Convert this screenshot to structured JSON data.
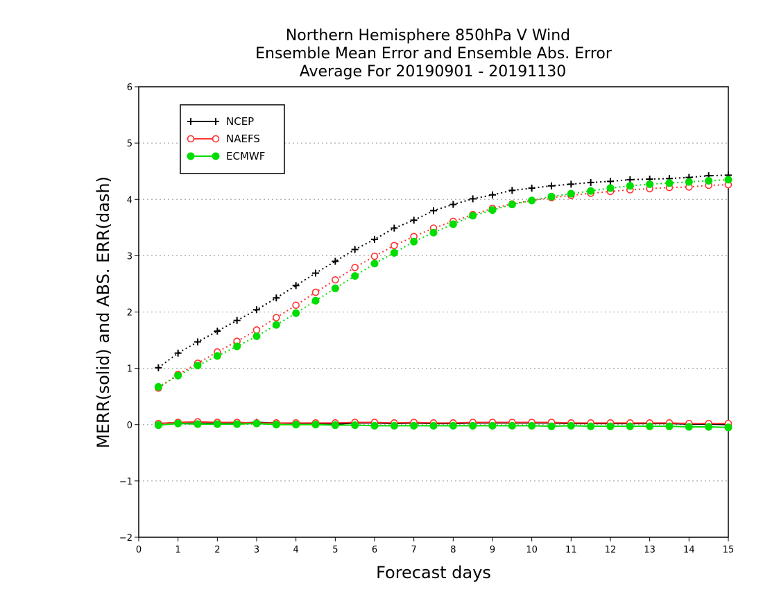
{
  "chart_data": {
    "type": "line",
    "title": [
      "Northern Hemisphere 850hPa V Wind",
      "Ensemble Mean Error and Ensemble Abs. Error",
      "Average For 20190901 - 20191130"
    ],
    "xlabel": "Forecast days",
    "ylabel": "MERR(solid) and ABS. ERR(dash)",
    "xlim": [
      0,
      15
    ],
    "ylim": [
      -2,
      6
    ],
    "xticks": [
      "0",
      "1",
      "2",
      "3",
      "4",
      "5",
      "6",
      "7",
      "8",
      "9",
      "10",
      "11",
      "12",
      "13",
      "14",
      "15"
    ],
    "yticks": [
      "−2",
      "−1",
      "0",
      "1",
      "2",
      "3",
      "4",
      "5",
      "6"
    ],
    "grid": "horizontal dotted",
    "legend_position": "top-left",
    "x": [
      0.5,
      1,
      1.5,
      2,
      2.5,
      3,
      3.5,
      4,
      4.5,
      5,
      5.5,
      6,
      6.5,
      7,
      7.5,
      8,
      8.5,
      9,
      9.5,
      10,
      10.5,
      11,
      11.5,
      12,
      12.5,
      13,
      13.5,
      14,
      14.5,
      15
    ],
    "series": [
      {
        "name": "NCEP",
        "color": "#000000",
        "marker": "plus",
        "abs_err": [
          1.01,
          1.27,
          1.47,
          1.66,
          1.85,
          2.04,
          2.25,
          2.47,
          2.69,
          2.9,
          3.11,
          3.29,
          3.49,
          3.63,
          3.8,
          3.91,
          4.01,
          4.08,
          4.16,
          4.2,
          4.24,
          4.27,
          4.3,
          4.32,
          4.35,
          4.36,
          4.37,
          4.39,
          4.42,
          4.43
        ],
        "mean_err": [
          0.02,
          0.04,
          0.04,
          0.03,
          0.03,
          0.04,
          0.03,
          0.02,
          0.02,
          0.01,
          0.03,
          0.03,
          0.02,
          0.03,
          0.02,
          0.02,
          0.03,
          0.03,
          0.03,
          0.03,
          0.03,
          0.02,
          0.02,
          0.02,
          0.02,
          0.02,
          0.02,
          0.01,
          0.01,
          0.0
        ]
      },
      {
        "name": "NAEFS",
        "color": "#ff3333",
        "marker": "open-circle",
        "abs_err": [
          0.65,
          0.89,
          1.09,
          1.29,
          1.48,
          1.68,
          1.9,
          2.12,
          2.35,
          2.57,
          2.79,
          2.99,
          3.18,
          3.34,
          3.49,
          3.61,
          3.73,
          3.84,
          3.92,
          3.98,
          4.03,
          4.07,
          4.11,
          4.14,
          4.17,
          4.19,
          4.21,
          4.22,
          4.25,
          4.26
        ],
        "mean_err": [
          0.02,
          0.04,
          0.05,
          0.04,
          0.04,
          0.03,
          0.03,
          0.03,
          0.03,
          0.03,
          0.04,
          0.04,
          0.03,
          0.04,
          0.03,
          0.03,
          0.04,
          0.04,
          0.04,
          0.04,
          0.04,
          0.03,
          0.03,
          0.03,
          0.03,
          0.03,
          0.03,
          0.02,
          0.02,
          0.02
        ]
      },
      {
        "name": "ECMWF",
        "color": "#00dd00",
        "marker": "filled-circle",
        "abs_err": [
          0.67,
          0.87,
          1.05,
          1.22,
          1.39,
          1.57,
          1.77,
          1.98,
          2.2,
          2.42,
          2.64,
          2.86,
          3.05,
          3.25,
          3.41,
          3.56,
          3.71,
          3.81,
          3.91,
          3.98,
          4.05,
          4.1,
          4.15,
          4.2,
          4.24,
          4.27,
          4.29,
          4.31,
          4.33,
          4.35
        ],
        "mean_err": [
          -0.01,
          0.02,
          0.01,
          0.01,
          0.01,
          0.02,
          0.0,
          0.0,
          0.0,
          -0.01,
          -0.01,
          -0.02,
          -0.02,
          -0.02,
          -0.02,
          -0.02,
          -0.02,
          -0.02,
          -0.02,
          -0.02,
          -0.03,
          -0.02,
          -0.03,
          -0.03,
          -0.03,
          -0.03,
          -0.03,
          -0.04,
          -0.04,
          -0.05
        ]
      }
    ]
  }
}
